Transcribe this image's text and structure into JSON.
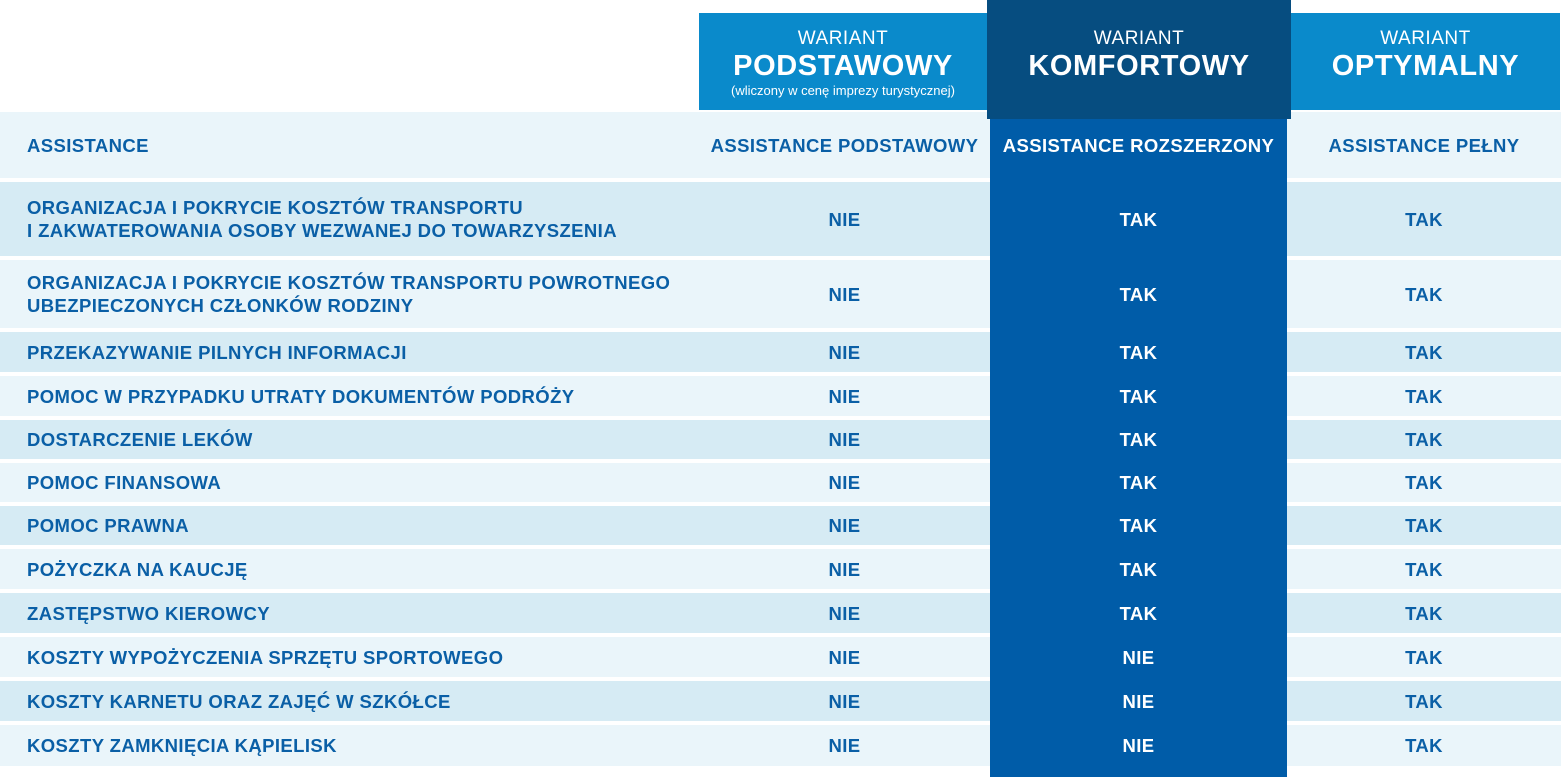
{
  "header": {
    "variants": [
      {
        "small": "WARIANT",
        "big": "PODSTAWOWY",
        "note": "(wliczony w cenę imprezy turystycznej)"
      },
      {
        "small": "WARIANT",
        "big": "KOMFORTOWY"
      },
      {
        "small": "WARIANT",
        "big": "OPTYMALNY"
      }
    ]
  },
  "subheader": {
    "label": "ASSISTANCE",
    "cols": [
      "ASSISTANCE PODSTAWOWY",
      "ASSISTANCE ROZSZERZONY",
      "ASSISTANCE PEŁNY"
    ]
  },
  "rows": [
    {
      "label": "ORGANIZACJA I POKRYCIE KOSZTÓW TRANSPORTU\nI ZAKWATEROWANIA OSOBY WEZWANEJ DO TOWARZYSZENIA",
      "v1": "NIE",
      "v2": "TAK",
      "v3": "TAK"
    },
    {
      "label": "ORGANIZACJA I POKRYCIE KOSZTÓW TRANSPORTU POWROTNEGO\nUBEZPIECZONYCH CZŁONKÓW RODZINY",
      "v1": "NIE",
      "v2": "TAK",
      "v3": "TAK"
    },
    {
      "label": "PRZEKAZYWANIE PILNYCH INFORMACJI",
      "v1": "NIE",
      "v2": "TAK",
      "v3": "TAK"
    },
    {
      "label": "POMOC W PRZYPADKU UTRATY DOKUMENTÓW PODRÓŻY",
      "v1": "NIE",
      "v2": "TAK",
      "v3": "TAK"
    },
    {
      "label": "DOSTARCZENIE LEKÓW",
      "v1": "NIE",
      "v2": "TAK",
      "v3": "TAK"
    },
    {
      "label": "POMOC FINANSOWA",
      "v1": "NIE",
      "v2": "TAK",
      "v3": "TAK"
    },
    {
      "label": "POMOC PRAWNA",
      "v1": "NIE",
      "v2": "TAK",
      "v3": "TAK"
    },
    {
      "label": "POŻYCZKA NA KAUCJĘ",
      "v1": "NIE",
      "v2": "TAK",
      "v3": "TAK"
    },
    {
      "label": "ZASTĘPSTWO KIEROWCY",
      "v1": "NIE",
      "v2": "TAK",
      "v3": "TAK"
    },
    {
      "label": "KOSZTY WYPOŻYCZENIA SPRZĘTU SPORTOWEGO",
      "v1": "NIE",
      "v2": "NIE",
      "v3": "TAK"
    },
    {
      "label": "KOSZTY KARNETU ORAZ ZAJĘĆ W SZKÓŁCE",
      "v1": "NIE",
      "v2": "NIE",
      "v3": "TAK"
    },
    {
      "label": "KOSZTY ZAMKNIĘCIA KĄPIELISK",
      "v1": "NIE",
      "v2": "NIE",
      "v3": "TAK"
    }
  ]
}
